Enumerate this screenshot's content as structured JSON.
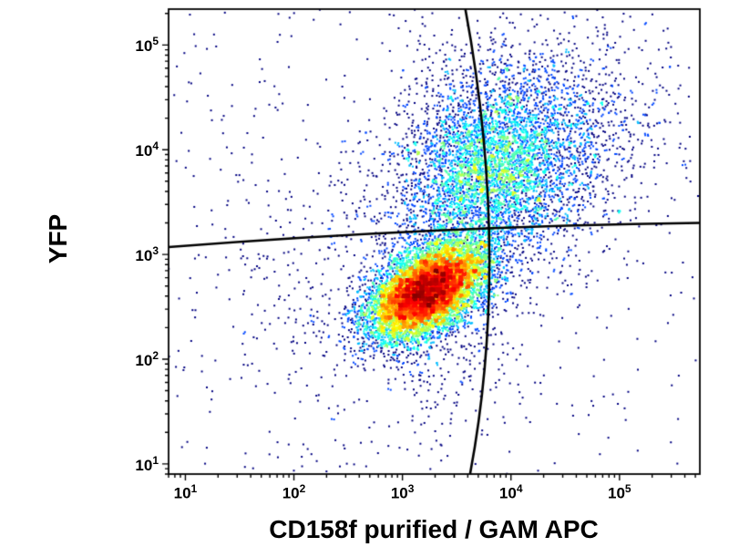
{
  "figure": {
    "background": "#ffffff",
    "text_color": "#000000"
  },
  "chart_data": {
    "type": "scatter",
    "subtype": "flow-cytometry-pseudocolor-density-dot-plot",
    "title": "",
    "xlabel": "CD158f purified / GAM APC",
    "ylabel": "YFP",
    "x_scale": "log",
    "y_scale": "log",
    "xlim": [
      7,
      550000
    ],
    "ylim": [
      8,
      220000
    ],
    "x_tick_exponents": [
      1,
      2,
      3,
      4,
      5
    ],
    "y_tick_exponents": [
      1,
      2,
      3,
      4,
      5
    ],
    "tick_base": "10",
    "grid": false,
    "legend": false,
    "colormap": "jet density (blue = sparse, cyan/green = medium, yellow/red = dense)",
    "point_color_low": "#000080",
    "point_color_high": "#ff0000",
    "populations": [
      {
        "name": "CD158f+ YFP-low main population (dense red core)",
        "center_x": 1700,
        "center_y": 450,
        "log_sigma_x": 0.27,
        "log_sigma_y": 0.23,
        "correlation": 0.5,
        "n": 9500
      },
      {
        "name": "CD158f+ YFP+ diffuse double-positive population",
        "center_x": 10000,
        "center_y": 9000,
        "log_sigma_x": 0.55,
        "log_sigma_y": 0.52,
        "correlation": 0.15,
        "n": 3800
      },
      {
        "name": "CD158f+ YFP+ denser core (cyan-green speckle)",
        "center_x": 6000,
        "center_y": 7000,
        "log_sigma_x": 0.3,
        "log_sigma_y": 0.36,
        "correlation": 0.1,
        "n": 1300
      },
      {
        "name": "bridge scatter between populations",
        "center_x": 2800,
        "center_y": 1800,
        "log_sigma_x": 0.35,
        "log_sigma_y": 0.45,
        "correlation": 0.2,
        "n": 700
      },
      {
        "name": "left sparse negative scatter",
        "center_x": 150,
        "center_y": 500,
        "log_sigma_x": 0.45,
        "log_sigma_y": 0.55,
        "correlation": 0.0,
        "n": 220
      },
      {
        "name": "lower sparse tail",
        "center_x": 2500,
        "center_y": 110,
        "log_sigma_x": 0.32,
        "log_sigma_y": 0.45,
        "correlation": 0.1,
        "n": 230
      }
    ],
    "background_n": 500,
    "gates": {
      "style": "curved quadrant gate lines",
      "color": "#000000",
      "intersection": {
        "x": 6500,
        "y": 1750
      },
      "vertical": [
        [
          3800,
          220000
        ],
        [
          10000,
          1000
        ],
        [
          4200,
          8
        ]
      ],
      "horizontal": [
        [
          7,
          1175
        ],
        [
          2000,
          1860
        ],
        [
          550000,
          2000
        ]
      ]
    }
  }
}
